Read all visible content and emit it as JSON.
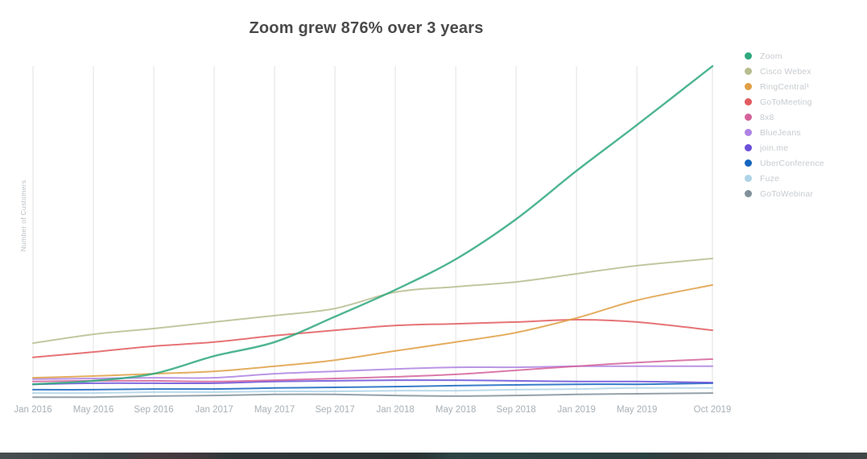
{
  "title": "Zoom grew 876% over 3 years",
  "chart_data": {
    "type": "line",
    "title": "Zoom grew 876% over 3 years",
    "xlabel": "",
    "ylabel": "Number of Customers",
    "y_axis_numeric_ticks_shown": false,
    "value_scale": "relative index 0-100 (no numeric y labels visible; values read from pixel positions)",
    "grid": "vertical gridlines only",
    "legend_position": "right",
    "categories": [
      "Jan 2016",
      "May 2016",
      "Sep 2016",
      "Jan 2017",
      "May 2017",
      "Sep 2017",
      "Jan 2018",
      "May 2018",
      "Sep 2018",
      "Jan 2019",
      "May 2019",
      "Oct 2019"
    ],
    "x_month_offsets": [
      0,
      4,
      8,
      12,
      16,
      20,
      24,
      28,
      32,
      36,
      40,
      45
    ],
    "series": [
      {
        "name": "Zoom",
        "color": "#2ea87d",
        "values": [
          4.7,
          5.7,
          7.8,
          13.0,
          17.1,
          24.6,
          32.5,
          41.5,
          53.3,
          67.5,
          81.0,
          98.3
        ]
      },
      {
        "name": "Cisco Webex",
        "color": "#b7bd8f",
        "values": [
          16.8,
          19.4,
          21.1,
          23.0,
          24.9,
          27.0,
          31.8,
          33.4,
          34.8,
          37.2,
          39.6,
          41.7
        ]
      },
      {
        "name": "RingCentral¹",
        "color": "#df9f44",
        "values": [
          6.6,
          7.1,
          7.8,
          8.5,
          10.0,
          11.8,
          14.5,
          17.1,
          19.9,
          24.2,
          29.4,
          33.9
        ]
      },
      {
        "name": "GoToMeeting",
        "color": "#e25a5e",
        "values": [
          12.6,
          14.2,
          15.9,
          17.1,
          19.0,
          20.6,
          22.0,
          22.5,
          23.0,
          23.7,
          23.0,
          20.6
        ]
      },
      {
        "name": "8x8",
        "color": "#d4629a",
        "values": [
          5.5,
          5.7,
          5.7,
          5.5,
          5.9,
          6.4,
          6.9,
          7.6,
          8.8,
          10.0,
          11.1,
          12.1
        ]
      },
      {
        "name": "BlueJeans",
        "color": "#ae82e2",
        "values": [
          6.2,
          6.4,
          6.6,
          6.6,
          7.8,
          8.5,
          9.2,
          9.7,
          9.7,
          10.0,
          10.0,
          10.0
        ]
      },
      {
        "name": "join.me",
        "color": "#6a50d8",
        "values": [
          4.7,
          5.0,
          5.0,
          5.0,
          5.5,
          5.7,
          5.9,
          5.9,
          5.7,
          5.5,
          5.5,
          5.2
        ]
      },
      {
        "name": "UberConference",
        "color": "#1565c0",
        "values": [
          3.1,
          3.1,
          3.3,
          3.3,
          3.6,
          3.8,
          4.0,
          4.3,
          4.5,
          4.7,
          4.7,
          5.0
        ]
      },
      {
        "name": "Fuze",
        "color": "#aed3e6",
        "values": [
          2.1,
          2.1,
          2.4,
          2.4,
          2.6,
          2.6,
          2.8,
          2.8,
          3.1,
          3.3,
          3.6,
          3.6
        ]
      },
      {
        "name": "GoToWebinar",
        "color": "#81909a",
        "values": [
          0.9,
          0.9,
          1.2,
          1.4,
          1.7,
          1.7,
          1.4,
          1.2,
          1.4,
          1.7,
          1.9,
          2.1
        ]
      }
    ]
  }
}
